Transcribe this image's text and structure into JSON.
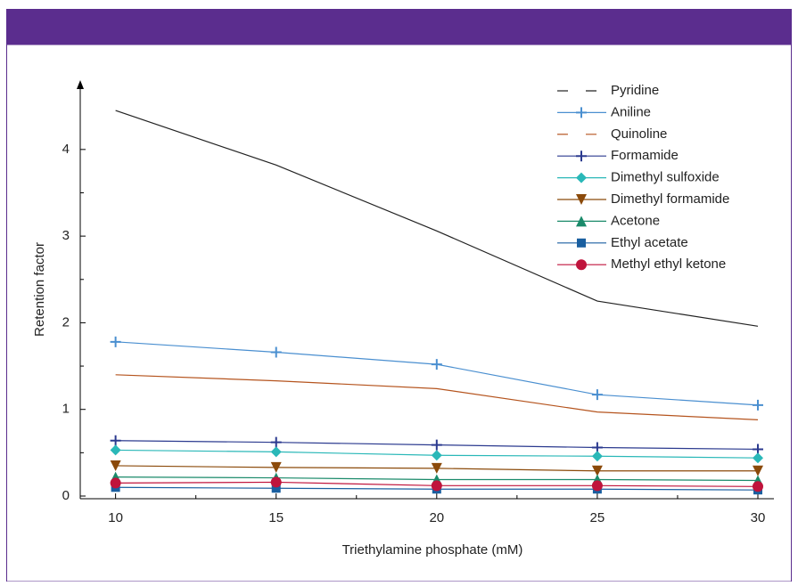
{
  "chart_data": {
    "type": "line",
    "xlabel": "Triethylamine phosphate (mM)",
    "ylabel": "Retention factor",
    "x": [
      10,
      15,
      20,
      25,
      30
    ],
    "xlim": [
      8.9,
      30.5
    ],
    "xticks": [
      10,
      15,
      20,
      25,
      30
    ],
    "x_minor_ticks": [
      12.5,
      17.5,
      22.5,
      27.5
    ],
    "ylim": [
      0,
      4.8
    ],
    "yticks": [
      0,
      1,
      2,
      3,
      4
    ],
    "y_minor_ticks": [
      0.5,
      1.5,
      2.5,
      3.5
    ],
    "legend": "upper right",
    "series": [
      {
        "name": "Pyridine",
        "color": "#222222",
        "marker": "none",
        "values": [
          4.45,
          3.82,
          3.06,
          2.25,
          1.96
        ]
      },
      {
        "name": "Aniline",
        "color": "#4a8fd0",
        "marker": "plus",
        "values": [
          1.78,
          1.66,
          1.52,
          1.17,
          1.05
        ]
      },
      {
        "name": "Quinoline",
        "color": "#b5541e",
        "marker": "none",
        "values": [
          1.4,
          1.33,
          1.24,
          0.97,
          0.88
        ]
      },
      {
        "name": "Formamide",
        "color": "#2b3a8f",
        "marker": "plus",
        "values": [
          0.64,
          0.62,
          0.59,
          0.56,
          0.54
        ]
      },
      {
        "name": "Dimethyl sulfoxide",
        "color": "#2ab8b8",
        "marker": "diamond",
        "values": [
          0.53,
          0.51,
          0.47,
          0.46,
          0.44
        ]
      },
      {
        "name": "Dimethyl formamide",
        "color": "#8b4a0a",
        "marker": "triangle-down",
        "values": [
          0.35,
          0.33,
          0.32,
          0.29,
          0.29
        ]
      },
      {
        "name": "Acetone",
        "color": "#1a8a6a",
        "marker": "triangle-up",
        "values": [
          0.22,
          0.21,
          0.19,
          0.19,
          0.18
        ]
      },
      {
        "name": "Ethyl acetate",
        "color": "#1a5fa0",
        "marker": "square",
        "values": [
          0.1,
          0.09,
          0.08,
          0.08,
          0.07
        ]
      },
      {
        "name": "Methyl ethyl ketone",
        "color": "#c0143c",
        "marker": "circle",
        "values": [
          0.15,
          0.16,
          0.12,
          0.12,
          0.11
        ]
      }
    ]
  }
}
